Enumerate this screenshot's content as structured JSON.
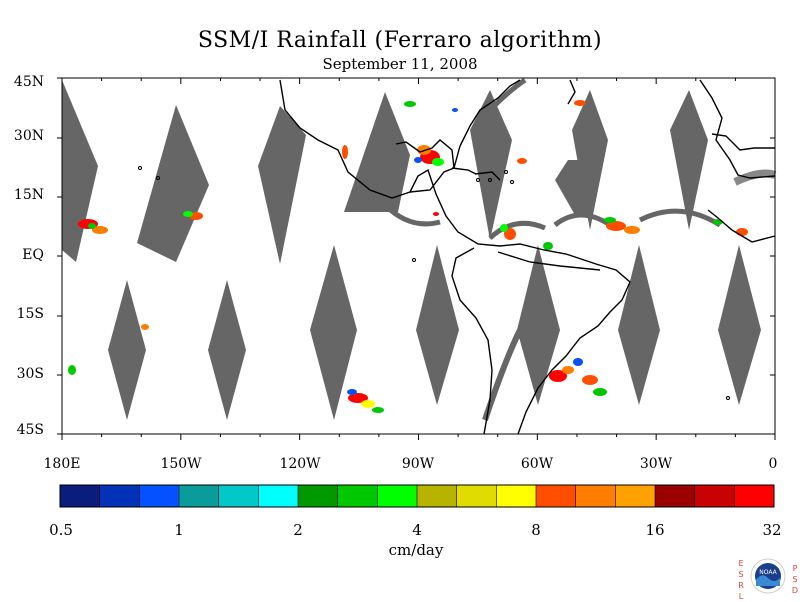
{
  "map": {
    "title": "SSM/I Rainfall (Ferraro algorithm)",
    "subtitle": "September 11, 2008",
    "lat_labels": [
      "45N",
      "30N",
      "15N",
      "EQ",
      "15S",
      "30S",
      "45S"
    ],
    "lon_labels": [
      "180E",
      "150W",
      "120W",
      "90W",
      "60W",
      "30W",
      "0"
    ],
    "lat_range": [
      -45,
      45
    ],
    "lon_range": [
      -180,
      0
    ],
    "swath_gap_color": "#666666",
    "coast_color": "#000000"
  },
  "colorbar": {
    "unit": "cm/day",
    "tick_labels": [
      "0.5",
      "1",
      "2",
      "4",
      "8",
      "16",
      "32"
    ],
    "colors": [
      "#0a1d7c",
      "#0232b8",
      "#0550ff",
      "#0a9b9b",
      "#03c8c8",
      "#00ffff",
      "#009a00",
      "#00c800",
      "#00ff00",
      "#b7b400",
      "#e1dc00",
      "#ffff00",
      "#ff4e00",
      "#ff7d00",
      "#ffa100",
      "#9a0000",
      "#c80000",
      "#ff0000"
    ]
  },
  "logo": {
    "badge": "NOAA",
    "left_letters": [
      "E",
      "S",
      "R",
      "L"
    ],
    "right_letters": [
      "P",
      "S",
      "D"
    ]
  }
}
